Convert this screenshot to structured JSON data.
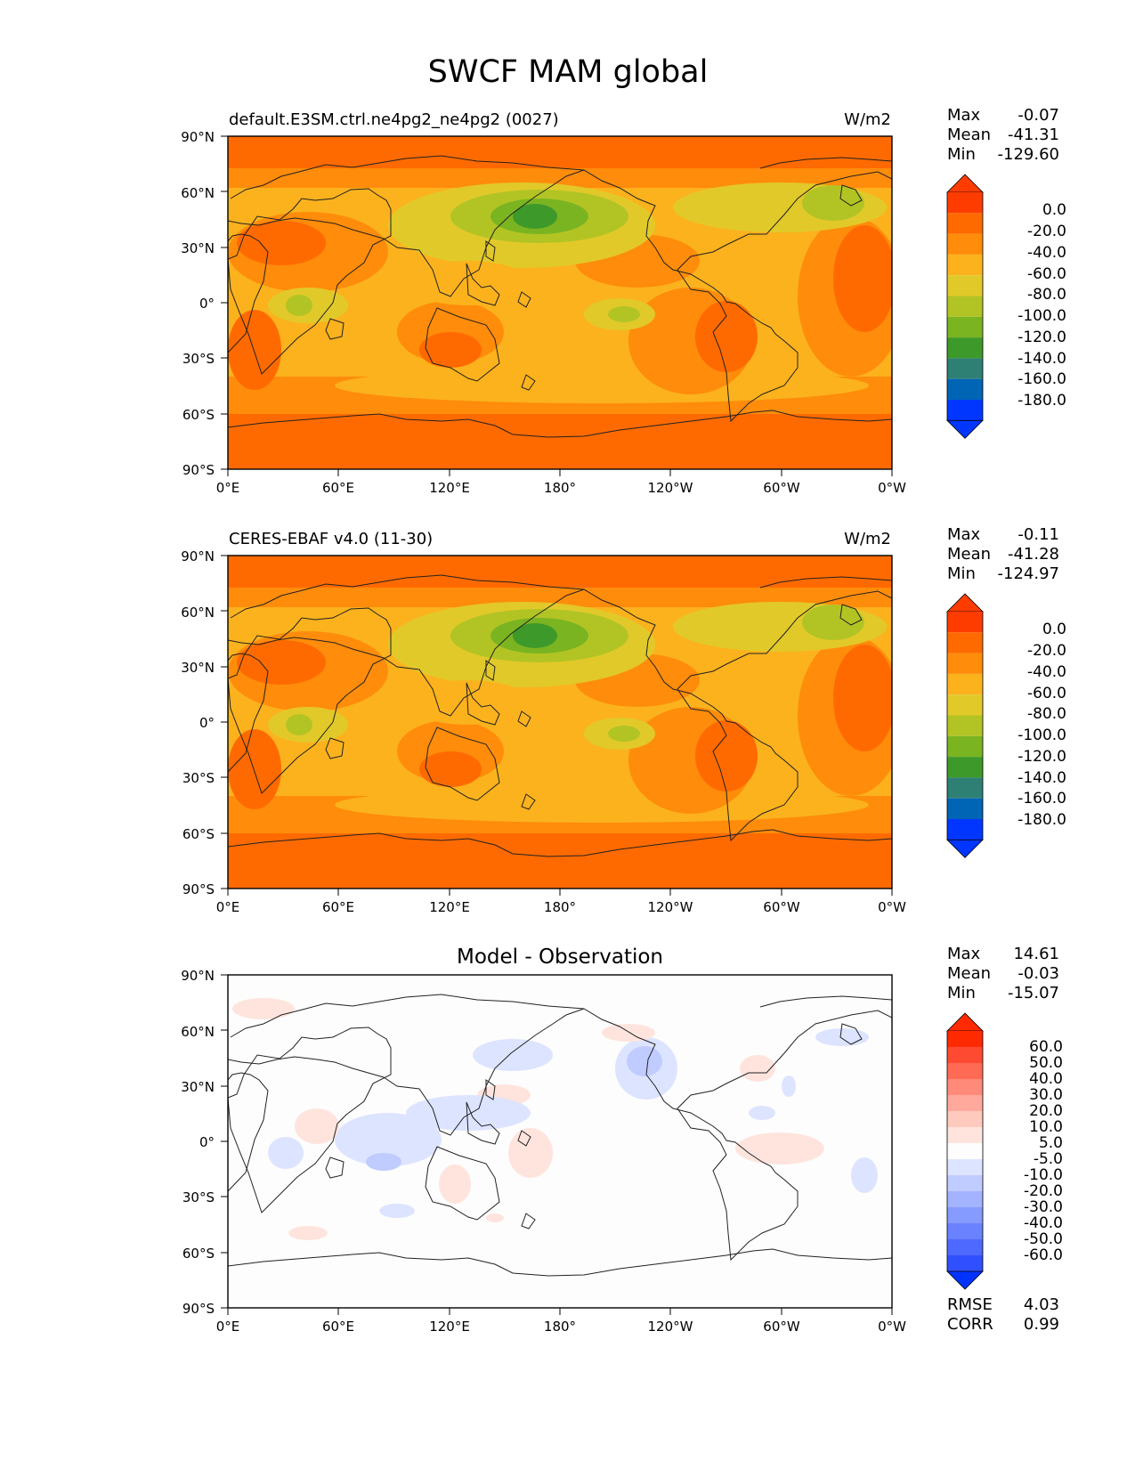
{
  "figure": {
    "title": "SWCF MAM global"
  },
  "panels": [
    {
      "id": "model",
      "title_left": "default.E3SM.ctrl.ne4pg2_ne4pg2 (0027)",
      "title_center": "",
      "units": "W/m2",
      "stats": {
        "max_label": "Max",
        "max": "-0.07",
        "mean_label": "Mean",
        "mean": "-41.31",
        "min_label": "Min",
        "min": "-129.60"
      },
      "colorbar_labels": [
        "0.0",
        "-20.0",
        "-40.0",
        "-60.0",
        "-80.0",
        "-100.0",
        "-120.0",
        "-140.0",
        "-160.0",
        "-180.0"
      ]
    },
    {
      "id": "obs",
      "title_left": "CERES-EBAF v4.0 (11-30)",
      "title_center": "",
      "units": "W/m2",
      "stats": {
        "max_label": "Max",
        "max": "-0.11",
        "mean_label": "Mean",
        "mean": "-41.28",
        "min_label": "Min",
        "min": "-124.97"
      },
      "colorbar_labels": [
        "0.0",
        "-20.0",
        "-40.0",
        "-60.0",
        "-80.0",
        "-100.0",
        "-120.0",
        "-140.0",
        "-160.0",
        "-180.0"
      ]
    },
    {
      "id": "diff",
      "title_left": "",
      "title_center": "Model - Observation",
      "units": "",
      "stats": {
        "max_label": "Max",
        "max": "14.61",
        "mean_label": "Mean",
        "mean": "-0.03",
        "min_label": "Min",
        "min": "-15.07"
      },
      "colorbar_labels": [
        "60.0",
        "50.0",
        "40.0",
        "30.0",
        "20.0",
        "10.0",
        "5.0",
        "-5.0",
        "-10.0",
        "-20.0",
        "-30.0",
        "-40.0",
        "-50.0",
        "-60.0"
      ],
      "metrics": {
        "rmse_label": "RMSE",
        "rmse": "4.03",
        "corr_label": "CORR",
        "corr": "0.99"
      }
    }
  ],
  "axes": {
    "lon_ticks": [
      "0°E",
      "60°E",
      "120°E",
      "180°",
      "120°W",
      "60°W",
      "0°W"
    ],
    "lat_ticks": [
      "90°N",
      "60°N",
      "30°N",
      "0°",
      "30°S",
      "60°S",
      "90°S"
    ]
  },
  "colors": {
    "field_scale": [
      "#ff3c00",
      "#ff6a00",
      "#ff8c0a",
      "#fbb21d",
      "#e2c92a",
      "#b2c424",
      "#7bb421",
      "#3d9a2a",
      "#2e8074",
      "#0065b5",
      "#0036ff"
    ],
    "diff_scale": [
      "#ff2a00",
      "#ff4a32",
      "#ff6a55",
      "#ff8a7a",
      "#ffa99c",
      "#ffcabe",
      "#ffe4de",
      "#fdfdfd",
      "#dde4ff",
      "#c0ccff",
      "#a3b3ff",
      "#869bff",
      "#6a82ff",
      "#4d69ff",
      "#3050ff",
      "#0033ff"
    ]
  }
}
